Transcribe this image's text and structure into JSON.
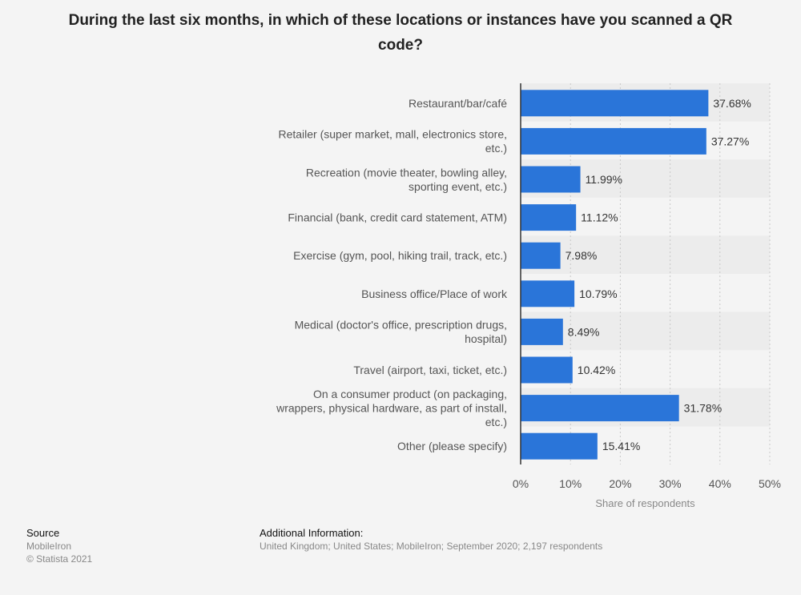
{
  "chart_data": {
    "type": "bar",
    "orientation": "horizontal",
    "title": "During the last six months, in which of these locations or instances have you scanned a QR code?",
    "xlabel": "Share of respondents",
    "ylabel": "",
    "xlim": [
      0,
      50
    ],
    "ticks": [
      "0%",
      "10%",
      "20%",
      "30%",
      "40%",
      "50%"
    ],
    "tick_values": [
      0,
      10,
      20,
      30,
      40,
      50
    ],
    "grid": true,
    "categories": [
      "Restaurant/bar/café",
      "Retailer (super market, mall, electronics store, etc.)",
      "Recreation (movie theater, bowling alley, sporting event, etc.)",
      "Financial (bank, credit card statement, ATM)",
      "Exercise (gym, pool, hiking trail, track, etc.)",
      "Business office/Place of work",
      "Medical (doctor's office, prescription drugs, hospital)",
      "Travel (airport, taxi, ticket, etc.)",
      "On a consumer product (on packaging, wrappers, physical hardware, as part of install, etc.)",
      "Other (please specify)"
    ],
    "category_lines": [
      [
        "Restaurant/bar/café"
      ],
      [
        "Retailer (super market, mall, electronics store,",
        "etc.)"
      ],
      [
        "Recreation (movie theater, bowling alley,",
        "sporting event, etc.)"
      ],
      [
        "Financial (bank, credit card statement, ATM)"
      ],
      [
        "Exercise (gym, pool, hiking trail, track, etc.)"
      ],
      [
        "Business office/Place of work"
      ],
      [
        "Medical (doctor's office, prescription drugs,",
        "hospital)"
      ],
      [
        "Travel (airport, taxi, ticket, etc.)"
      ],
      [
        "On a consumer product (on packaging,",
        "wrappers, physical hardware, as part of install,",
        "etc.)"
      ],
      [
        "Other (please specify)"
      ]
    ],
    "values": [
      37.68,
      37.27,
      11.99,
      11.12,
      7.98,
      10.79,
      8.49,
      10.42,
      31.78,
      15.41
    ],
    "data_labels": [
      "37.68%",
      "37.27%",
      "11.99%",
      "11.12%",
      "7.98%",
      "10.79%",
      "8.49%",
      "10.42%",
      "31.78%",
      "15.41%"
    ],
    "bar_color": "#2a75d9"
  },
  "footer": {
    "source_heading": "Source",
    "source_name": "MobileIron",
    "copyright": "© Statista 2021",
    "info_heading": "Additional Information:",
    "info_text": "United Kingdom; United States; MobileIron; September 2020; 2,197 respondents"
  }
}
